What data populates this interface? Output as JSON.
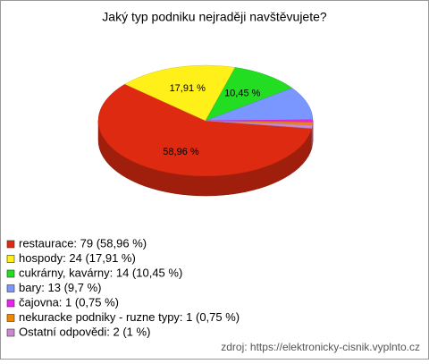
{
  "chart_data": {
    "type": "pie",
    "title": "Jaký typ podniku nejraději navštěvujete?",
    "categories": [
      "restaurace: 79 (58,96 %)",
      "hospody: 24 (17,91 %)",
      "cukrárny, kavárny: 14 (10,45 %)",
      "bary: 13 (9,7 %)",
      "čajovna: 1 (0,75 %)",
      "nekuracke podniky - ruzne typy: 1 (0,75 %)",
      "Ostatní odpovědi: 2 (1 %)"
    ],
    "values": [
      58.96,
      17.91,
      10.45,
      9.7,
      0.75,
      0.75,
      1
    ],
    "value_labels": [
      "58,96 %",
      "17,91 %",
      "10,45 %",
      null,
      null,
      null,
      null
    ],
    "colors": [
      "#dd2a10",
      "#fff01a",
      "#22dd22",
      "#7a96ff",
      "#ee22ee",
      "#ee8800",
      "#cc88cc"
    ],
    "source": "zdroj: https://elektronicky-cisnik.vyplnto.cz"
  }
}
